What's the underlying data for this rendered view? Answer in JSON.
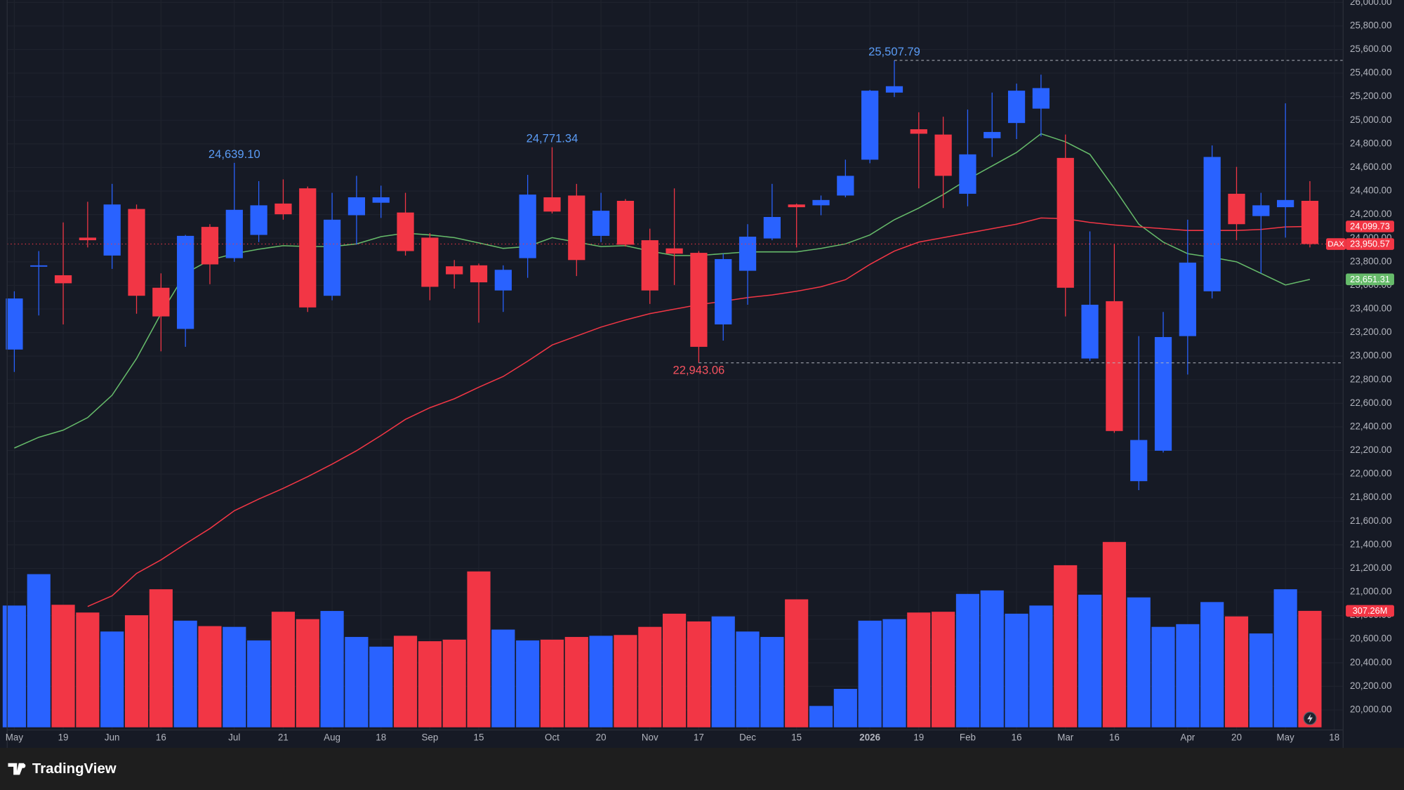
{
  "chart_data": {
    "type": "candlestick",
    "symbol": "DAX",
    "brand": "TradingView",
    "up_color": "#2962ff",
    "down_color": "#f23645",
    "categories": [
      "May",
      null,
      "19",
      null,
      "Jun",
      null,
      "16",
      null,
      null,
      "Jul",
      null,
      "21",
      null,
      "Aug",
      null,
      "18",
      null,
      "Sep",
      null,
      "15",
      null,
      null,
      "Oct",
      null,
      "20",
      null,
      "Nov",
      null,
      "17",
      null,
      "Dec",
      null,
      "15",
      null,
      null,
      "2026",
      null,
      "19",
      null,
      "Feb",
      null,
      "16",
      null,
      "Mar",
      null,
      "16",
      null,
      null,
      "Apr",
      null,
      "20",
      null,
      "May",
      null,
      "18"
    ],
    "open": [
      23056,
      23762,
      23686,
      24005,
      23853,
      24248,
      23580,
      23231,
      24096,
      23831,
      24028,
      24294,
      24423,
      23512,
      24195,
      24301,
      24218,
      24005,
      23762,
      23770,
      23557,
      23831,
      24347,
      24362,
      24020,
      24317,
      23983,
      23914,
      23876,
      23269,
      23724,
      23998,
      24286,
      24279,
      24362,
      24666,
      25235,
      24924,
      24879,
      24377,
      24848,
      24977,
      25099,
      24681,
      22980,
      23466,
      21940,
      22198,
      23170,
      23550,
      24377,
      24188,
      24263,
      24317,
      null
    ],
    "high": [
      23550,
      23891,
      24134,
      24309,
      24461,
      24286,
      23702,
      24028,
      24119,
      24639.1,
      24484,
      24499,
      24438,
      24385,
      24529,
      24446,
      24385,
      24043,
      23815,
      23785,
      23770,
      24537,
      24771.34,
      24461,
      24385,
      24332,
      24081,
      24423,
      23891,
      23869,
      24119,
      24461,
      24294,
      24362,
      24666,
      25258,
      25507.79,
      25068,
      25030,
      25091,
      25235,
      25311,
      25387,
      24879,
      24058,
      23952,
      23170,
      23375,
      24157,
      24787,
      24605,
      24385,
      25144,
      24484,
      null
    ],
    "low": [
      22866,
      23345,
      23269,
      23922,
      23740,
      23360,
      23041,
      23079,
      23610,
      23800,
      23967,
      24157,
      23375,
      23474,
      23945,
      24172,
      23853,
      23474,
      23573,
      23284,
      23375,
      23664,
      24210,
      23679,
      23967,
      23929,
      23443,
      23603,
      22943.06,
      23132,
      23436,
      23983,
      23922,
      24195,
      24347,
      24636,
      25197,
      24423,
      24256,
      24271,
      24689,
      24841,
      24863,
      23337,
      22960,
      22350,
      21864,
      22183,
      22844,
      23489,
      23983,
      23702,
      24005,
      23922,
      null
    ],
    "close": [
      23489,
      23770,
      23618,
      23983,
      24286,
      23512,
      23337,
      24020,
      23778,
      24241,
      24279,
      24203,
      23413,
      24157,
      24347,
      24347,
      23891,
      23588,
      23694,
      23626,
      23732,
      24370,
      24226,
      23815,
      24233,
      23945,
      23557,
      23869,
      23079,
      23823,
      24013,
      24180,
      24263,
      24324,
      24529,
      25251,
      25289,
      24886,
      24529,
      24711,
      24901,
      25251,
      25273,
      23580,
      23436,
      22365,
      22289,
      23162,
      23793,
      24689,
      24119,
      24279,
      24324,
      23950.57,
      null
    ],
    "close_last_label": "23,950.57",
    "volume": [
      321,
      402,
      323,
      303,
      254,
      296,
      363,
      282,
      268,
      266,
      231,
      305,
      286,
      307,
      240,
      215,
      243,
      229,
      233,
      409,
      259,
      231,
      233,
      240,
      243,
      245,
      266,
      300,
      280,
      293,
      254,
      240,
      337,
      62,
      106,
      282,
      286,
      303,
      305,
      351,
      360,
      300,
      321,
      425,
      349,
      485,
      342,
      266,
      273,
      330,
      293,
      249,
      363,
      307.26,
      null
    ],
    "volume_last_label": "307.26M",
    "vlim": [
      0,
      1883
    ],
    "moving_averages": [
      {
        "color": "#66bb6a",
        "last_label": "23,651.31",
        "values": [
          22221,
          22312,
          22373,
          22479,
          22669,
          22980,
          23360,
          23702,
          23815,
          23869,
          23907,
          23937,
          23929,
          23929,
          23952,
          24013,
          24043,
          24028,
          24005,
          23960,
          23914,
          23929,
          24005,
          23967,
          23929,
          23937,
          23891,
          23853,
          23853,
          23869,
          23884,
          23884,
          23884,
          23914,
          23952,
          24028,
          24157,
          24256,
          24370,
          24499,
          24613,
          24727,
          24886,
          24818,
          24711,
          24423,
          24119,
          23967,
          23869,
          23838,
          23800,
          23702,
          23603,
          23651.31,
          null
        ]
      },
      {
        "color": "#f23645",
        "last_label": "24,099.73",
        "values": [
          null,
          null,
          null,
          20877,
          20968,
          21158,
          21272,
          21408,
          21538,
          21689,
          21788,
          21879,
          21978,
          22084,
          22198,
          22327,
          22464,
          22563,
          22639,
          22737,
          22828,
          22957,
          23094,
          23170,
          23246,
          23307,
          23360,
          23398,
          23436,
          23466,
          23497,
          23519,
          23550,
          23588,
          23648,
          23778,
          23891,
          23967,
          24005,
          24043,
          24081,
          24119,
          24172,
          24165,
          24134,
          24112,
          24096,
          24081,
          24066,
          24066,
          24066,
          24074,
          24096,
          24099.73,
          null
        ]
      }
    ],
    "high_labels": [
      {
        "index": 9,
        "label": "24,639.10",
        "dashed": false
      },
      {
        "index": 22,
        "label": "24,771.34",
        "dashed": false
      },
      {
        "index": 36,
        "label": "25,507.79",
        "dashed": true
      }
    ],
    "low_labels": [
      {
        "index": 28,
        "label": "22,943.06",
        "dashed": true
      }
    ],
    "high_label_color": "#5b9cf6",
    "low_label_color": "#f7525f",
    "ylim": [
      19830,
      26020
    ],
    "yticks": [
      {
        "value": 20000,
        "label": "20,000.00"
      },
      {
        "value": 20200,
        "label": "20,200.00"
      },
      {
        "value": 20400,
        "label": "20,400.00"
      },
      {
        "value": 20600,
        "label": "20,600.00"
      },
      {
        "value": 20800,
        "label": "20,800.00"
      },
      {
        "value": 21000,
        "label": "21,000.00"
      },
      {
        "value": 21200,
        "label": "21,200.00"
      },
      {
        "value": 21400,
        "label": "21,400.00"
      },
      {
        "value": 21600,
        "label": "21,600.00"
      },
      {
        "value": 21800,
        "label": "21,800.00"
      },
      {
        "value": 22000,
        "label": "22,000.00"
      },
      {
        "value": 22200,
        "label": "22,200.00"
      },
      {
        "value": 22400,
        "label": "22,400.00"
      },
      {
        "value": 22600,
        "label": "22,600.00"
      },
      {
        "value": 22800,
        "label": "22,800.00"
      },
      {
        "value": 23000,
        "label": "23,000.00"
      },
      {
        "value": 23200,
        "label": "23,200.00"
      },
      {
        "value": 23400,
        "label": "23,400.00"
      },
      {
        "value": 23600,
        "label": "23,600.00"
      },
      {
        "value": 23800,
        "label": "23,800.00"
      },
      {
        "value": 24000,
        "label": "24,000.00"
      },
      {
        "value": 24200,
        "label": "24,200.00"
      },
      {
        "value": 24400,
        "label": "24,400.00"
      },
      {
        "value": 24600,
        "label": "24,600.00"
      },
      {
        "value": 24800,
        "label": "24,800.00"
      },
      {
        "value": 25000,
        "label": "25,000.00"
      },
      {
        "value": 25200,
        "label": "25,200.00"
      },
      {
        "value": 25400,
        "label": "25,400.00"
      },
      {
        "value": 25600,
        "label": "25,600.00"
      },
      {
        "value": 25800,
        "label": "25,800.00"
      },
      {
        "value": 26000,
        "label": "26,000.00"
      }
    ],
    "grid": true
  }
}
